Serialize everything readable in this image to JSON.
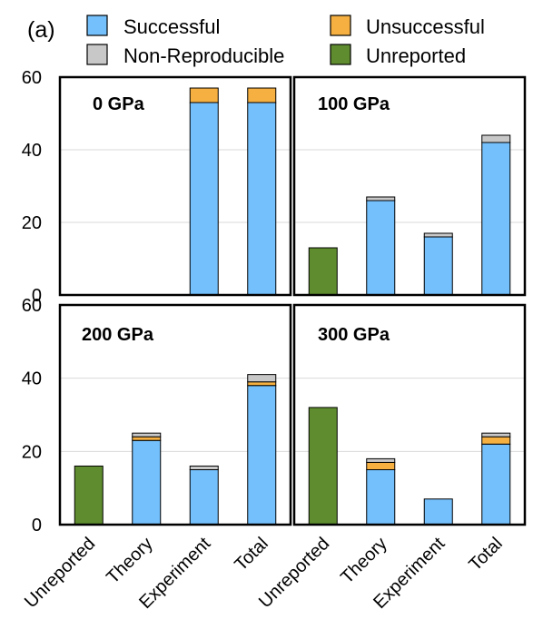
{
  "panel_label": "(a)",
  "legend": [
    {
      "name": "Successful",
      "color": "#74C0FC"
    },
    {
      "name": "Unsuccessful",
      "color": "#F5B041"
    },
    {
      "name": "Non-Reproducible",
      "color": "#C8C8C8"
    },
    {
      "name": "Unreported",
      "color": "#5E8C2E"
    }
  ],
  "chart_data": [
    {
      "type": "bar",
      "stacked": true,
      "title": "0 GPa",
      "categories": [
        "Unreported",
        "Theory",
        "Experiment",
        "Total"
      ],
      "ylim": [
        0,
        60
      ],
      "yticks": [
        0,
        20,
        40,
        60
      ],
      "grid": true,
      "series": [
        {
          "name": "Unreported",
          "values": [
            0,
            0,
            0,
            0
          ]
        },
        {
          "name": "Successful",
          "values": [
            0,
            0,
            53,
            53
          ]
        },
        {
          "name": "Unsuccessful",
          "values": [
            0,
            0,
            4,
            4
          ]
        },
        {
          "name": "Non-Reproducible",
          "values": [
            0,
            0,
            0,
            0
          ]
        }
      ]
    },
    {
      "type": "bar",
      "stacked": true,
      "title": "100 GPa",
      "categories": [
        "Unreported",
        "Theory",
        "Experiment",
        "Total"
      ],
      "ylim": [
        0,
        60
      ],
      "yticks": [
        0,
        20,
        40,
        60
      ],
      "grid": true,
      "series": [
        {
          "name": "Unreported",
          "values": [
            13,
            0,
            0,
            0
          ]
        },
        {
          "name": "Successful",
          "values": [
            0,
            26,
            16,
            42
          ]
        },
        {
          "name": "Unsuccessful",
          "values": [
            0,
            0,
            0,
            0
          ]
        },
        {
          "name": "Non-Reproducible",
          "values": [
            0,
            1,
            1,
            2
          ]
        }
      ]
    },
    {
      "type": "bar",
      "stacked": true,
      "title": "200 GPa",
      "categories": [
        "Unreported",
        "Theory",
        "Experiment",
        "Total"
      ],
      "ylim": [
        0,
        60
      ],
      "yticks": [
        0,
        20,
        40,
        60
      ],
      "grid": true,
      "series": [
        {
          "name": "Unreported",
          "values": [
            16,
            0,
            0,
            0
          ]
        },
        {
          "name": "Successful",
          "values": [
            0,
            23,
            15,
            38
          ]
        },
        {
          "name": "Unsuccessful",
          "values": [
            0,
            1,
            0,
            1
          ]
        },
        {
          "name": "Non-Reproducible",
          "values": [
            0,
            1,
            1,
            2
          ]
        }
      ]
    },
    {
      "type": "bar",
      "stacked": true,
      "title": "300 GPa",
      "categories": [
        "Unreported",
        "Theory",
        "Experiment",
        "Total"
      ],
      "ylim": [
        0,
        60
      ],
      "yticks": [
        0,
        20,
        40,
        60
      ],
      "grid": true,
      "series": [
        {
          "name": "Unreported",
          "values": [
            32,
            0,
            0,
            0
          ]
        },
        {
          "name": "Successful",
          "values": [
            0,
            15,
            7,
            22
          ]
        },
        {
          "name": "Unsuccessful",
          "values": [
            0,
            2,
            0,
            2
          ]
        },
        {
          "name": "Non-Reproducible",
          "values": [
            0,
            1,
            0,
            1
          ]
        }
      ]
    }
  ]
}
